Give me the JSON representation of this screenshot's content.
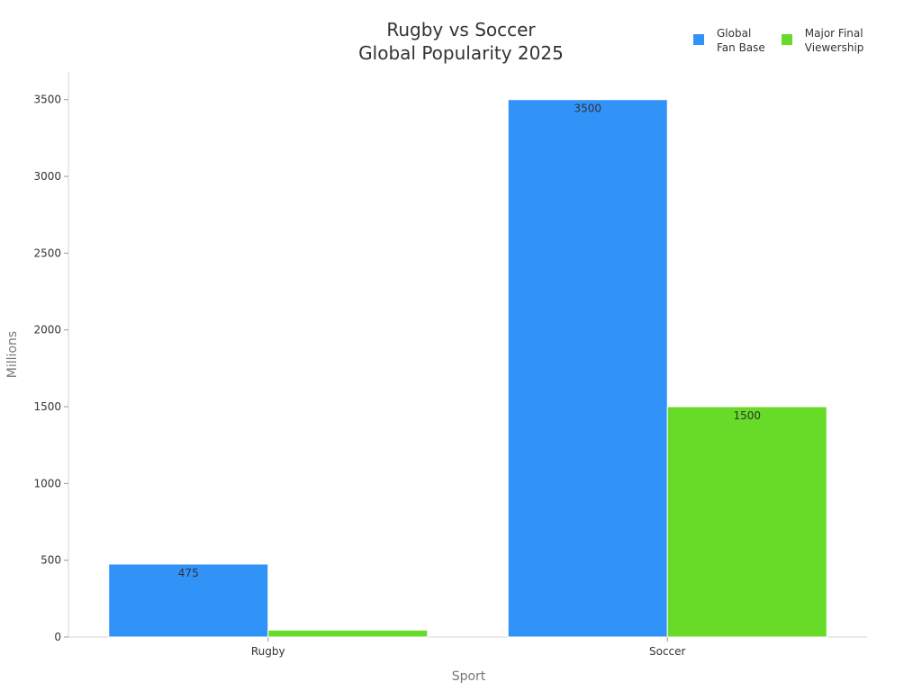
{
  "chart_data": {
    "type": "bar",
    "title_lines": [
      "Rugby vs Soccer",
      "Global Popularity 2025"
    ],
    "xlabel": "Sport",
    "ylabel": "Millions",
    "categories": [
      "Rugby",
      "Soccer"
    ],
    "series": [
      {
        "name": "Global\nFan Base",
        "color": "#3192f8",
        "values": [
          475,
          3500
        ],
        "labels": [
          "475",
          "3500"
        ]
      },
      {
        "name": "Major Final\nViewership",
        "color": "#67db27",
        "values": [
          45,
          1500
        ],
        "labels": [
          "",
          "1500"
        ]
      }
    ],
    "ylim": [
      0,
      3680
    ],
    "yticks": [
      0,
      500,
      1000,
      1500,
      2000,
      2500,
      3000,
      3500
    ],
    "grid": false,
    "legend_position": "top-right"
  }
}
